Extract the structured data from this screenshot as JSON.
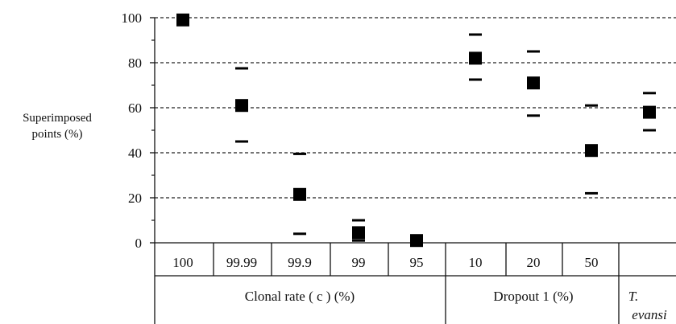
{
  "chart_data": {
    "type": "scatter",
    "ylabel_lines": [
      "Superimposed",
      "points (%)"
    ],
    "ylim": [
      0,
      100
    ],
    "yticks": [
      0,
      20,
      40,
      60,
      80,
      100
    ],
    "grid": "horizontal dashed",
    "categories": [
      "100",
      "99.99",
      "99.9",
      "99",
      "95",
      "10",
      "20",
      "50",
      ""
    ],
    "groups": [
      {
        "label": "Clonal rate ( c ) (%)",
        "span": [
          0,
          4
        ]
      },
      {
        "label": "Dropout 1 (%)",
        "span": [
          5,
          7
        ]
      },
      {
        "label": "T. evansi",
        "span": [
          8,
          8
        ]
      }
    ],
    "series": [
      {
        "values": [
          99,
          61,
          21.5,
          4.5,
          1,
          82,
          71,
          41,
          58
        ],
        "upper": [
          null,
          77.5,
          39.5,
          10,
          null,
          92.5,
          85,
          61,
          66.5
        ],
        "lower": [
          null,
          45,
          4,
          1,
          null,
          72.5,
          56.5,
          22,
          50
        ]
      }
    ]
  }
}
